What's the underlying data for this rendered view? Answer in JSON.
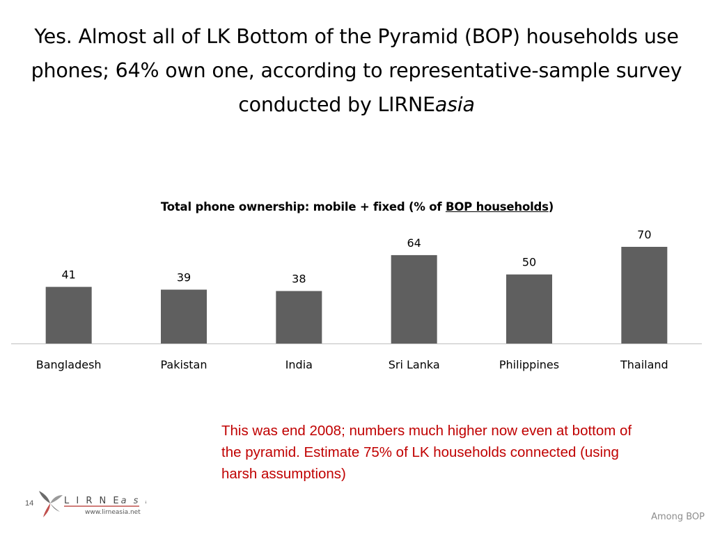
{
  "slide": {
    "title_main": "Yes.  Almost all of LK Bottom of the Pyramid (BOP) households use phones; 64% own one, according to representative-sample survey conducted by LIRNE",
    "title_italic": "asia",
    "note": "This was end 2008; numbers much higher now even at bottom of the pyramid.  Estimate 75% of LK households connected (using harsh assumptions)",
    "page_number": "14",
    "footer": "Among BOP"
  },
  "logo": {
    "wordmark": "LIRNEasia",
    "url": "www.lirneasia.net"
  },
  "chart_data": {
    "type": "bar",
    "title_prefix": "Total phone ownership: mobile + fixed (% of ",
    "title_underlined": "BOP households",
    "title_suffix": ")",
    "categories": [
      "Bangladesh",
      "Pakistan",
      "India",
      "Sri Lanka",
      "Philippines",
      "Thailand"
    ],
    "values": [
      41,
      39,
      38,
      64,
      50,
      70
    ],
    "ylim": [
      0,
      70
    ],
    "grid": false,
    "legend": "none",
    "bar_color": "#5f5f5f"
  }
}
